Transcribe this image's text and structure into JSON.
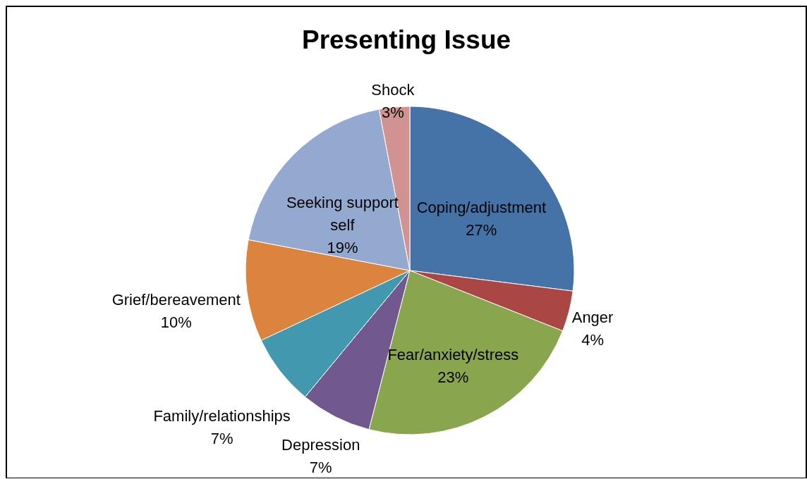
{
  "chart_data": {
    "type": "pie",
    "title": "Presenting Issue",
    "categories": [
      "Coping/adjustment",
      "Anger",
      "Fear/anxiety/stress",
      "Depression",
      "Family/relationships",
      "Grief/bereavement",
      "Seeking support self",
      "Shock"
    ],
    "values": [
      27,
      4,
      23,
      7,
      7,
      10,
      19,
      3
    ],
    "value_labels": [
      "27%",
      "4%",
      "23%",
      "7%",
      "7%",
      "10%",
      "19%",
      "3%"
    ],
    "colors": [
      "#4572a7",
      "#aa4643",
      "#89a54e",
      "#71588f",
      "#4198af",
      "#db843d",
      "#93a9cf",
      "#d19392"
    ]
  }
}
